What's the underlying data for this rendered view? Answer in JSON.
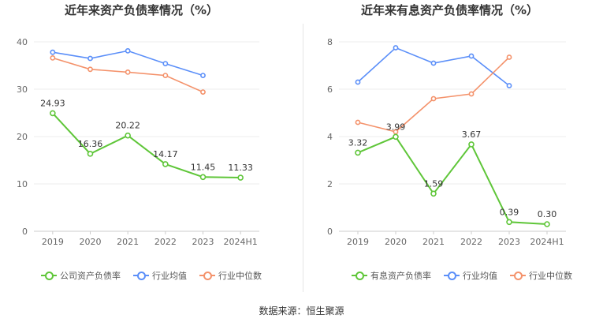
{
  "chart_data": [
    {
      "type": "line",
      "title": "近年来资产负债率情况（%）",
      "categories": [
        "2019",
        "2020",
        "2021",
        "2022",
        "2023",
        "2024H1"
      ],
      "ylim": [
        0,
        40
      ],
      "yticks": [
        0,
        10,
        20,
        30,
        40
      ],
      "grid": true,
      "legend_position": "bottom",
      "series": [
        {
          "name": "公司资产负债率",
          "color": "#5fc639",
          "values": [
            24.93,
            16.36,
            20.22,
            14.17,
            11.45,
            11.33
          ],
          "labels": [
            "24.93",
            "16.36",
            "20.22",
            "14.17",
            "11.45",
            "11.33"
          ]
        },
        {
          "name": "行业均值",
          "color": "#5b8ff9",
          "values": [
            37.8,
            36.5,
            38.1,
            35.4,
            32.9,
            null
          ]
        },
        {
          "name": "行业中位数",
          "color": "#f4926b",
          "values": [
            36.6,
            34.2,
            33.6,
            32.9,
            29.4,
            null
          ]
        }
      ]
    },
    {
      "type": "line",
      "title": "近年来有息资产负债率情况（%）",
      "categories": [
        "2019",
        "2020",
        "2021",
        "2022",
        "2023",
        "2024H1"
      ],
      "ylim": [
        0,
        8
      ],
      "yticks": [
        0,
        2,
        4,
        6,
        8
      ],
      "grid": true,
      "legend_position": "bottom",
      "series": [
        {
          "name": "有息资产负债率",
          "color": "#5fc639",
          "values": [
            3.32,
            3.99,
            1.59,
            3.67,
            0.39,
            0.3
          ],
          "labels": [
            "3.32",
            "3.99",
            "1.59",
            "3.67",
            "0.39",
            "0.30"
          ]
        },
        {
          "name": "行业均值",
          "color": "#5b8ff9",
          "values": [
            6.3,
            7.75,
            7.1,
            7.4,
            6.15,
            null
          ]
        },
        {
          "name": "行业中位数",
          "color": "#f4926b",
          "values": [
            4.6,
            4.2,
            5.6,
            5.8,
            7.35,
            null
          ]
        }
      ]
    }
  ],
  "source": "数据来源：恒生聚源"
}
